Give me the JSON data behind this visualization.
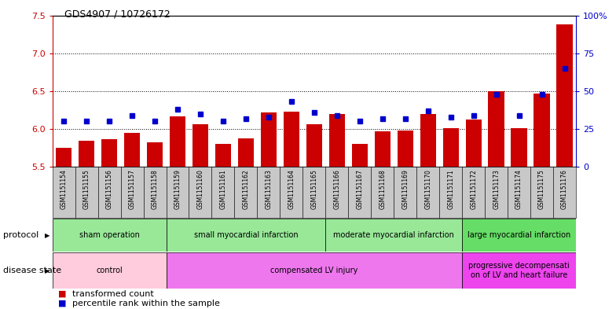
{
  "title": "GDS4907 / 10726172",
  "samples": [
    "GSM1151154",
    "GSM1151155",
    "GSM1151156",
    "GSM1151157",
    "GSM1151158",
    "GSM1151159",
    "GSM1151160",
    "GSM1151161",
    "GSM1151162",
    "GSM1151163",
    "GSM1151164",
    "GSM1151165",
    "GSM1151166",
    "GSM1151167",
    "GSM1151168",
    "GSM1151169",
    "GSM1151170",
    "GSM1151171",
    "GSM1151172",
    "GSM1151173",
    "GSM1151174",
    "GSM1151175",
    "GSM1151176"
  ],
  "bar_values": [
    5.75,
    5.85,
    5.87,
    5.95,
    5.82,
    6.17,
    6.06,
    5.8,
    5.88,
    6.22,
    6.23,
    6.06,
    6.2,
    5.8,
    5.97,
    5.98,
    6.2,
    6.01,
    6.13,
    6.5,
    6.01,
    6.47,
    7.38
  ],
  "dot_values": [
    30,
    30,
    30,
    34,
    30,
    38,
    35,
    30,
    32,
    33,
    43,
    36,
    34,
    30,
    32,
    32,
    37,
    33,
    34,
    48,
    34,
    48,
    65
  ],
  "bar_color": "#cc0000",
  "dot_color": "#0000cc",
  "ylim_left": [
    5.5,
    7.5
  ],
  "ylim_right": [
    0,
    100
  ],
  "yticks_left": [
    5.5,
    6.0,
    6.5,
    7.0,
    7.5
  ],
  "yticks_right": [
    0,
    25,
    50,
    75,
    100
  ],
  "ytick_labels_right": [
    "0",
    "25",
    "50",
    "75",
    "100%"
  ],
  "grid_values": [
    6.0,
    6.5,
    7.0
  ],
  "protocol_groups": [
    {
      "label": "sham operation",
      "start": 0,
      "end": 4,
      "color": "#98e898"
    },
    {
      "label": "small myocardial infarction",
      "start": 5,
      "end": 11,
      "color": "#98e898"
    },
    {
      "label": "moderate myocardial infarction",
      "start": 12,
      "end": 17,
      "color": "#98e898"
    },
    {
      "label": "large myocardial infarction",
      "start": 18,
      "end": 22,
      "color": "#66dd66"
    }
  ],
  "disease_groups": [
    {
      "label": "control",
      "start": 0,
      "end": 4,
      "color": "#ffccdd"
    },
    {
      "label": "compensated LV injury",
      "start": 5,
      "end": 17,
      "color": "#ee77ee"
    },
    {
      "label": "progressive decompensati\non of LV and heart failure",
      "start": 18,
      "end": 22,
      "color": "#ee44ee"
    }
  ],
  "legend_bar_label": "transformed count",
  "legend_dot_label": "percentile rank within the sample",
  "sample_bg_color": "#c8c8c8",
  "plot_bg_color": "#ffffff"
}
